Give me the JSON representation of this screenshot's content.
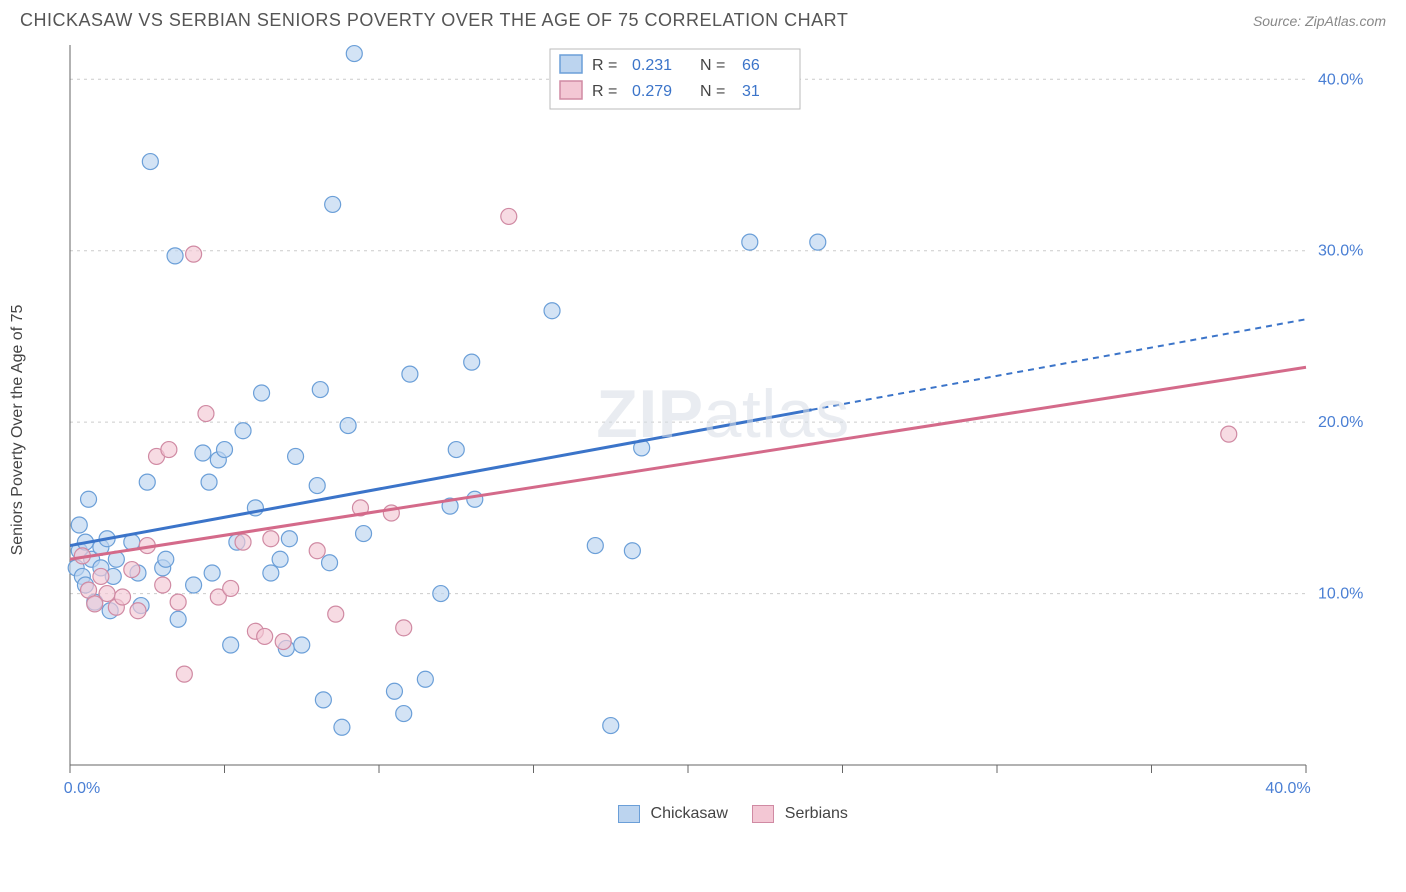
{
  "header": {
    "title": "CHICKASAW VS SERBIAN SENIORS POVERTY OVER THE AGE OF 75 CORRELATION CHART",
    "source_prefix": "Source: ",
    "source_name": "ZipAtlas.com"
  },
  "yaxis": {
    "label": "Seniors Poverty Over the Age of 75"
  },
  "watermark": {
    "zip": "ZIP",
    "atlas": "atlas"
  },
  "chart": {
    "type": "scatter",
    "xlim": [
      0,
      40
    ],
    "ylim": [
      0,
      42
    ],
    "x_ticks": [
      0,
      5,
      10,
      15,
      20,
      25,
      30,
      35,
      40
    ],
    "x_ticklabels_major": {
      "0": "0.0%",
      "40": "40.0%"
    },
    "y_ticks": [
      10,
      20,
      30,
      40
    ],
    "y_ticklabels": {
      "10": "10.0%",
      "20": "20.0%",
      "30": "30.0%",
      "40": "40.0%"
    },
    "grid_color": "#cccccc",
    "background_color": "#ffffff",
    "marker_radius": 8,
    "marker_stroke_width": 1.2,
    "series": {
      "chickasaw": {
        "label": "Chickasaw",
        "fill": "#bcd4ef",
        "stroke": "#6b9fd8",
        "fill_opacity": 0.65,
        "R": "0.231",
        "N": "66",
        "trend": {
          "x1": 0,
          "y1": 12.8,
          "x2": 40,
          "y2": 26.0,
          "solid_until_x": 24
        },
        "points": [
          [
            0.2,
            11.5
          ],
          [
            0.3,
            12.5
          ],
          [
            0.3,
            14.0
          ],
          [
            0.4,
            11.0
          ],
          [
            0.5,
            10.5
          ],
          [
            0.5,
            13.0
          ],
          [
            0.6,
            15.5
          ],
          [
            0.7,
            12.0
          ],
          [
            0.8,
            9.5
          ],
          [
            1.0,
            11.5
          ],
          [
            1.0,
            12.7
          ],
          [
            1.2,
            13.2
          ],
          [
            1.3,
            9.0
          ],
          [
            1.4,
            11.0
          ],
          [
            1.5,
            12.0
          ],
          [
            2.0,
            13.0
          ],
          [
            2.2,
            11.2
          ],
          [
            2.3,
            9.3
          ],
          [
            2.5,
            16.5
          ],
          [
            2.6,
            35.2
          ],
          [
            3.0,
            11.5
          ],
          [
            3.1,
            12.0
          ],
          [
            3.4,
            29.7
          ],
          [
            3.5,
            8.5
          ],
          [
            4.0,
            10.5
          ],
          [
            4.3,
            18.2
          ],
          [
            4.5,
            16.5
          ],
          [
            4.6,
            11.2
          ],
          [
            4.8,
            17.8
          ],
          [
            5.0,
            18.4
          ],
          [
            5.2,
            7.0
          ],
          [
            5.4,
            13.0
          ],
          [
            5.6,
            19.5
          ],
          [
            6.0,
            15.0
          ],
          [
            6.2,
            21.7
          ],
          [
            6.5,
            11.2
          ],
          [
            6.8,
            12.0
          ],
          [
            7.0,
            6.8
          ],
          [
            7.1,
            13.2
          ],
          [
            7.3,
            18.0
          ],
          [
            7.5,
            7.0
          ],
          [
            8.0,
            16.3
          ],
          [
            8.1,
            21.9
          ],
          [
            8.2,
            3.8
          ],
          [
            8.4,
            11.8
          ],
          [
            8.5,
            32.7
          ],
          [
            8.8,
            2.2
          ],
          [
            9.0,
            19.8
          ],
          [
            9.2,
            41.5
          ],
          [
            9.5,
            13.5
          ],
          [
            10.5,
            4.3
          ],
          [
            10.8,
            3.0
          ],
          [
            11.0,
            22.8
          ],
          [
            11.5,
            5.0
          ],
          [
            12.0,
            10.0
          ],
          [
            12.3,
            15.1
          ],
          [
            12.5,
            18.4
          ],
          [
            13.0,
            23.5
          ],
          [
            13.1,
            15.5
          ],
          [
            15.6,
            26.5
          ],
          [
            17.0,
            12.8
          ],
          [
            17.5,
            2.3
          ],
          [
            18.2,
            12.5
          ],
          [
            18.5,
            18.5
          ],
          [
            22.0,
            30.5
          ],
          [
            24.2,
            30.5
          ]
        ]
      },
      "serbians": {
        "label": "Serbians",
        "fill": "#f3c7d4",
        "stroke": "#d08aa3",
        "fill_opacity": 0.65,
        "R": "0.279",
        "N": "31",
        "trend": {
          "x1": 0,
          "y1": 12.0,
          "x2": 40,
          "y2": 23.2,
          "solid_until_x": 40
        },
        "points": [
          [
            0.4,
            12.2
          ],
          [
            0.6,
            10.2
          ],
          [
            0.8,
            9.4
          ],
          [
            1.0,
            11.0
          ],
          [
            1.2,
            10.0
          ],
          [
            1.5,
            9.2
          ],
          [
            1.7,
            9.8
          ],
          [
            2.0,
            11.4
          ],
          [
            2.2,
            9.0
          ],
          [
            2.5,
            12.8
          ],
          [
            2.8,
            18.0
          ],
          [
            3.0,
            10.5
          ],
          [
            3.2,
            18.4
          ],
          [
            3.5,
            9.5
          ],
          [
            3.7,
            5.3
          ],
          [
            4.0,
            29.8
          ],
          [
            4.4,
            20.5
          ],
          [
            4.8,
            9.8
          ],
          [
            5.2,
            10.3
          ],
          [
            5.6,
            13.0
          ],
          [
            6.0,
            7.8
          ],
          [
            6.3,
            7.5
          ],
          [
            6.5,
            13.2
          ],
          [
            6.9,
            7.2
          ],
          [
            8.0,
            12.5
          ],
          [
            8.6,
            8.8
          ],
          [
            9.4,
            15.0
          ],
          [
            10.4,
            14.7
          ],
          [
            10.8,
            8.0
          ],
          [
            14.2,
            32.0
          ],
          [
            37.5,
            19.3
          ]
        ]
      }
    },
    "legend_top": {
      "r_label": "R =",
      "n_label": "N =",
      "value_color": "#3b74c9",
      "text_color": "#444444"
    }
  }
}
